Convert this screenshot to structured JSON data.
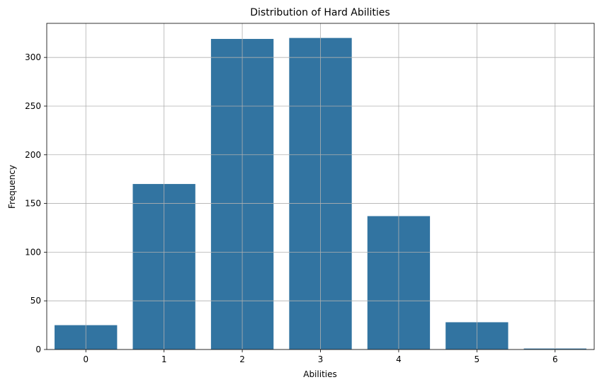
{
  "chart_data": {
    "type": "bar",
    "title": "Distribution of Hard Abilities",
    "xlabel": "Abilities",
    "ylabel": "Frequency",
    "categories": [
      "0",
      "1",
      "2",
      "3",
      "4",
      "5",
      "6"
    ],
    "values": [
      25,
      170,
      319,
      320,
      137,
      28,
      1
    ],
    "ylim": [
      0,
      335
    ],
    "yticks": [
      0,
      50,
      100,
      150,
      200,
      250,
      300
    ],
    "grid": true,
    "bar_color": "#3274a1"
  }
}
